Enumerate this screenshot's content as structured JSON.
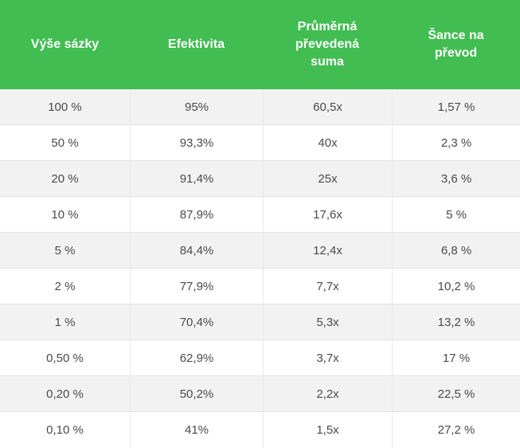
{
  "table": {
    "headers": [
      "Výše sázky",
      "Efektivita",
      "Průměrná\npřevedená\nsuma",
      "Šance na\npřevod"
    ],
    "rows": [
      [
        "100 %",
        "95%",
        "60,5x",
        "1,57 %"
      ],
      [
        "50 %",
        "93,3%",
        "40x",
        "2,3 %"
      ],
      [
        "20 %",
        "91,4%",
        "25x",
        "3,6 %"
      ],
      [
        "10 %",
        "87,9%",
        "17,6x",
        "5 %"
      ],
      [
        "5 %",
        "84,4%",
        "12,4x",
        "6,8 %"
      ],
      [
        "2 %",
        "77,9%",
        "7,7x",
        "10,2 %"
      ],
      [
        "1 %",
        "70,4%",
        "5,3x",
        "13,2 %"
      ],
      [
        "0,50 %",
        "62,9%",
        "3,7x",
        "17 %"
      ],
      [
        "0,20 %",
        "50,2%",
        "2,2x",
        "22,5 %"
      ],
      [
        "0,10 %",
        "41%",
        "1,5x",
        "27,2 %"
      ]
    ]
  },
  "colors": {
    "header_bg": "#41bd51",
    "header_text": "#ffffff",
    "row_odd_bg": "#f3f2f3",
    "row_even_bg": "#ffffff",
    "cell_text": "#4a4a4a"
  }
}
